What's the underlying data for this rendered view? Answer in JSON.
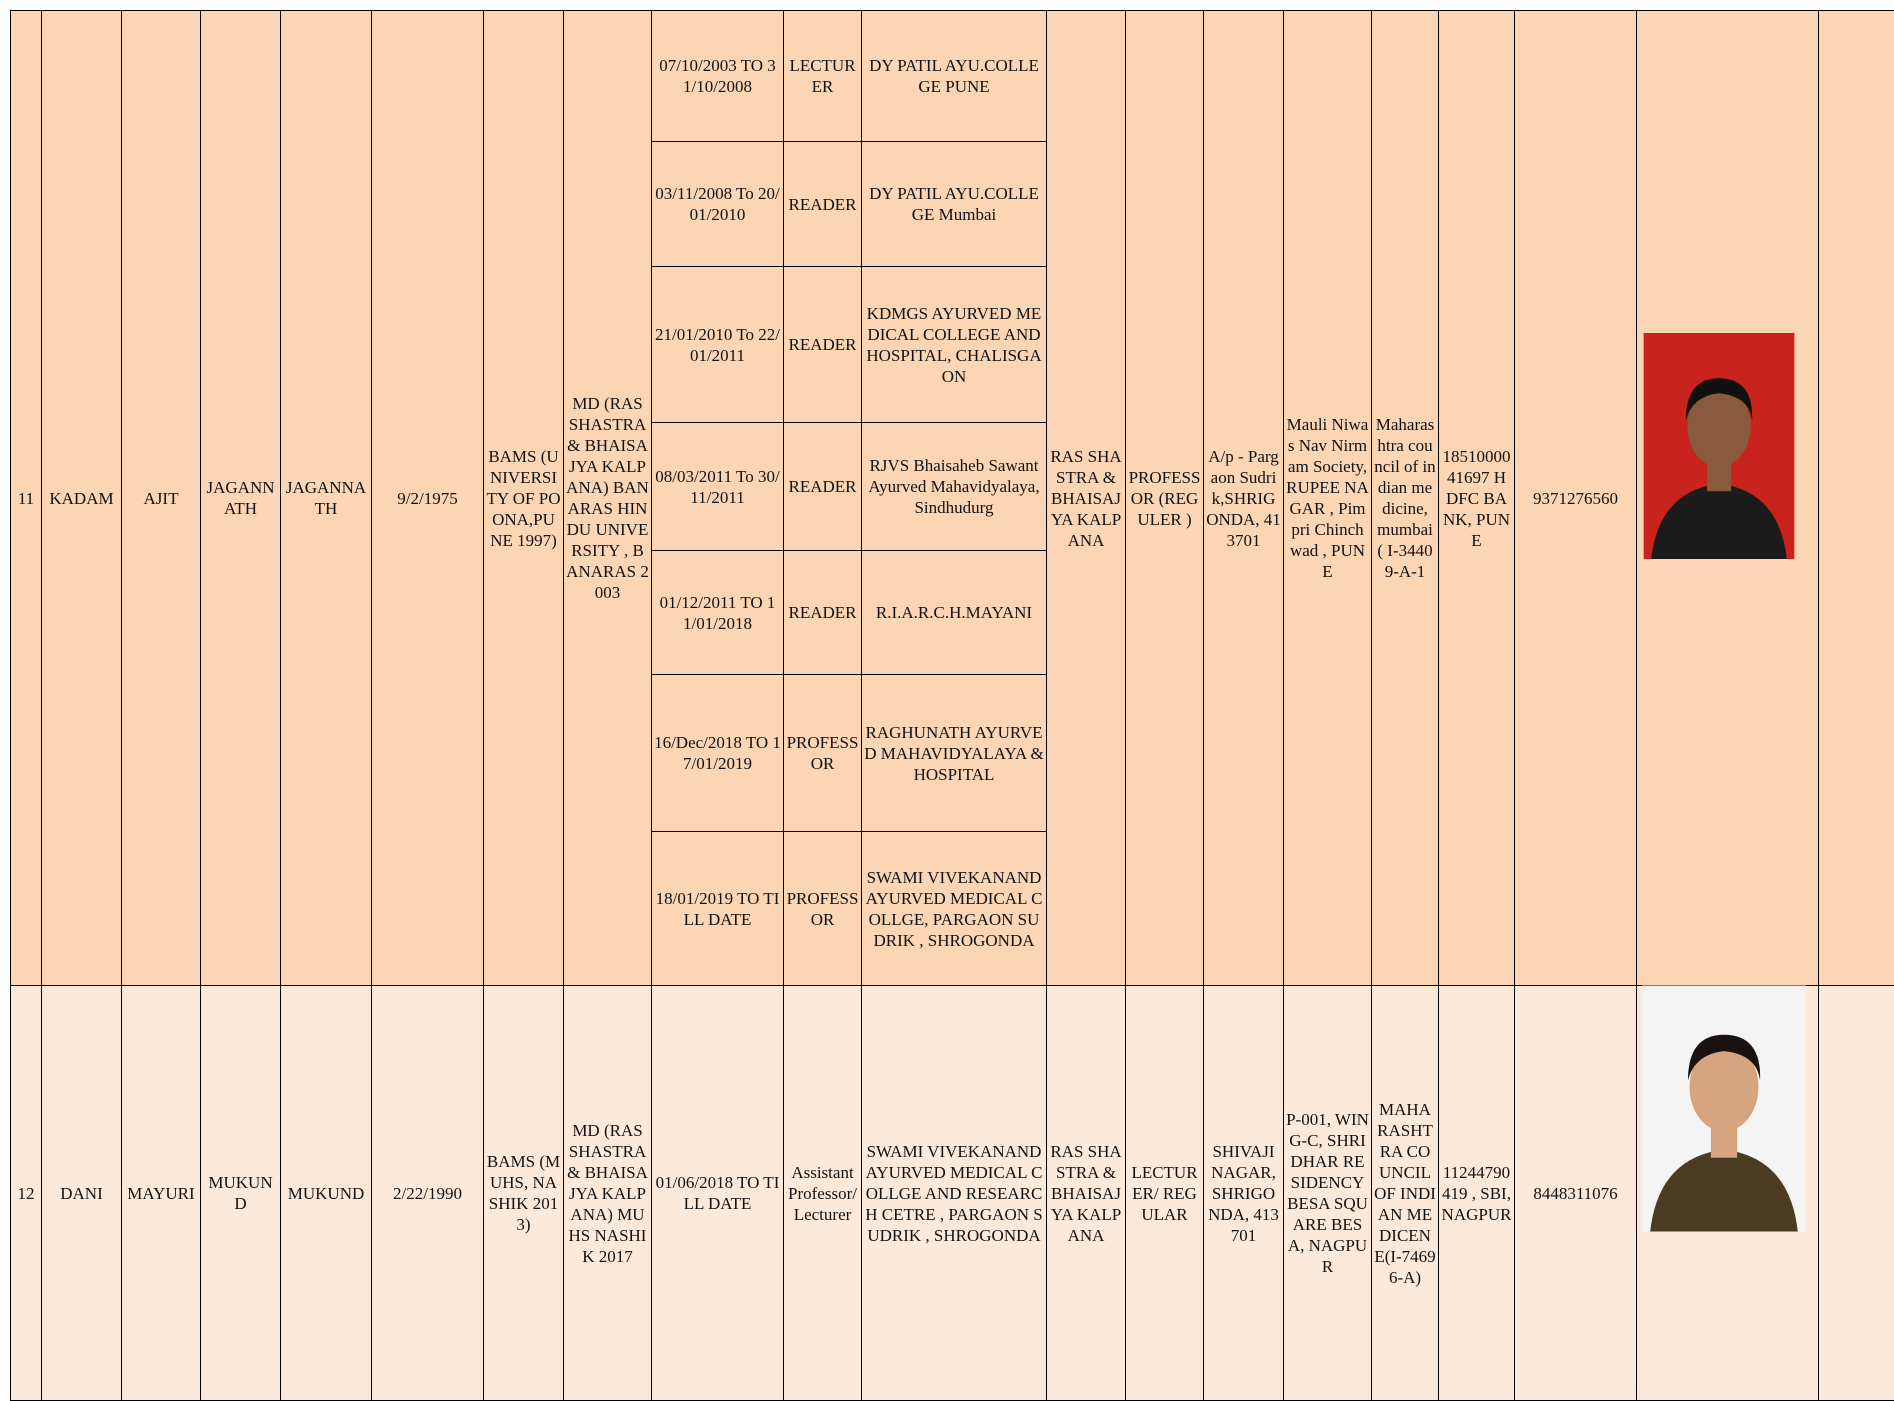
{
  "table": {
    "rows": [
      {
        "sr": "11",
        "surname": "KADAM",
        "name": "AJIT",
        "father": "JAGANNATH",
        "middle": "JAGANNATH",
        "dob": "9/2/1975",
        "ug": "BAMS (UNIVERSITY OF POONA,PUNE 1997)",
        "pg": "MD (RAS SHASTRA & BHAISAJYA KALPANA) BANARAS HINDU UNIVERSITY , BANARAS 2003",
        "experience": [
          {
            "period": "07/10/2003 TO 31/10/2008",
            "designation": "LECTURER",
            "college": "DY PATIL AYU.COLLEGE PUNE"
          },
          {
            "period": "03/11/2008 To 20/01/2010",
            "designation": "READER",
            "college": "DY PATIL AYU.COLLEGE Mumbai"
          },
          {
            "period": "21/01/2010 To 22/01/2011",
            "designation": "READER",
            "college": "KDMGS AYURVED MEDICAL COLLEGE AND HOSPITAL, CHALISGAON"
          },
          {
            "period": "08/03/2011 To 30/11/2011",
            "designation": "READER",
            "college": "RJVS Bhaisaheb Sawant Ayurved Mahavidyalaya, Sindhudurg"
          },
          {
            "period": "01/12/2011 TO 11/01/2018",
            "designation": "READER",
            "college": "R.I.A.R.C.H.MAYANI"
          },
          {
            "period": "16/Dec/2018 TO 17/01/2019",
            "designation": "PROFESSOR",
            "college": "RAGHUNATH AYURVED MAHAVIDYALAYA & HOSPITAL"
          },
          {
            "period": "18/01/2019 TO TILL DATE",
            "designation": "PROFESSOR",
            "college": "SWAMI VIVEKANAND AYURVED MEDICAL COLLGE, PARGAON SUDRIK , SHROGONDA"
          }
        ],
        "department": "RAS SHASTRA & BHAISAJYA KALPANA",
        "designation": "PROFESSOR (REGULER )",
        "address": "A/p - Pargaon Sudrik,SHRIGONDA, 413701",
        "residence": "Mauli Niwas Nav Nirmam Society,RUPEE NAGAR , Pimpri Chinchwad , PUNE",
        "council": "Maharashtra council of indian medicine, mumbai ( I-34409-A-1",
        "bank": "1851000041697 HDFC BANK, PUNE",
        "mobile": "9371276560"
      },
      {
        "sr": "12",
        "surname": "DANI",
        "name": "MAYURI",
        "father": "MUKUND",
        "middle": "MUKUND",
        "dob": "2/22/1990",
        "ug": "BAMS (MUHS, NASHIK 2013)",
        "pg": "MD (RAS SHASTRA & BHAISAJYA KALPANA) MUHS NASHIK 2017",
        "experience": [
          {
            "period": "01/06/2018 TO TILL DATE",
            "designation": "Assistant Professor/ Lecturer",
            "college": "SWAMI VIVEKANAND AYURVED MEDICAL COLLGE AND RESEARCH CETRE , PARGAON SUDRIK , SHROGONDA"
          }
        ],
        "department": "RAS SHASTRA & BHAISAJYA KALPANA",
        "designation": "LECTURER/ REGULAR",
        "address": "SHIVAJI NAGAR, SHRIGONDA, 413701",
        "residence": "P-001, WING-C, SHRIDHAR RESIDENCY BESA SQUARE BESA, NAGPUR",
        "council": "MAHARASHTRA COUNCIL OF INDIAN MEDICENE(I-74696-A)",
        "bank": "11244790419 , SBI, NAGPUR",
        "mobile": "8448311076"
      }
    ]
  }
}
